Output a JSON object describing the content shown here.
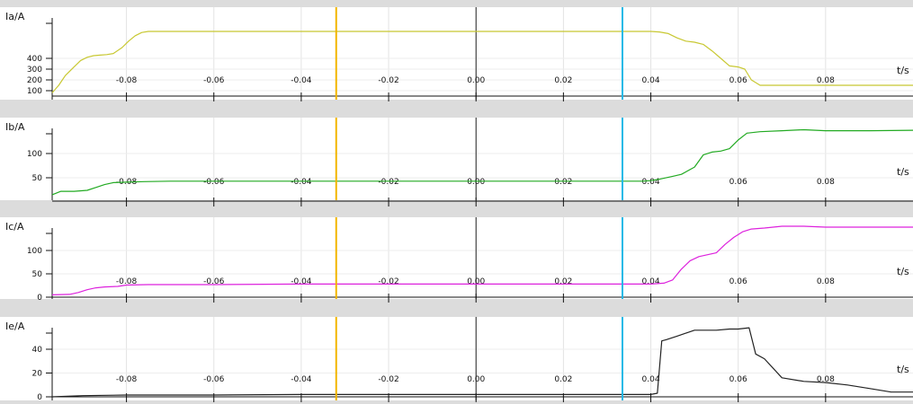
{
  "chart_data": [
    {
      "type": "line",
      "ylabel": "Ia/A",
      "xunit": "t/s",
      "xlim": [
        -0.097,
        0.1
      ],
      "x_ticks": [
        "-0.08",
        "-0.06",
        "-0.04",
        "-0.02",
        "0.00",
        "0.02",
        "0.04",
        "0.06",
        "0.08"
      ],
      "y_ticks": [
        "100",
        "200",
        "300",
        "400"
      ],
      "grid": true,
      "color": "#c8c832",
      "series": [
        {
          "x": [
            -0.097,
            -0.0955,
            -0.094,
            -0.092,
            -0.0905,
            -0.089,
            -0.0875,
            -0.086,
            -0.0845,
            -0.083,
            -0.081,
            -0.0795,
            -0.078,
            -0.0765,
            -0.075,
            -0.073,
            -0.071,
            -0.068,
            -0.06,
            -0.05,
            -0.04,
            -0.03,
            -0.02,
            -0.01,
            0.0,
            0.01,
            0.02,
            0.03,
            0.035,
            0.038,
            0.04,
            0.042,
            0.044,
            0.046,
            0.048,
            0.05,
            0.052,
            0.054,
            0.056,
            0.058,
            0.06,
            0.0615,
            0.063,
            0.065,
            0.07,
            0.08,
            0.09,
            0.1
          ],
          "y": [
            80,
            150,
            240,
            320,
            380,
            410,
            425,
            430,
            435,
            445,
            500,
            560,
            610,
            640,
            650,
            650,
            650,
            650,
            650,
            650,
            650,
            650,
            650,
            650,
            650,
            650,
            650,
            650,
            650,
            650,
            650,
            645,
            630,
            590,
            560,
            550,
            530,
            470,
            400,
            330,
            320,
            300,
            200,
            150,
            150,
            150,
            150,
            150
          ]
        }
      ]
    },
    {
      "type": "line",
      "ylabel": "Ib/A",
      "xunit": "t/s",
      "xlim": [
        -0.097,
        0.1
      ],
      "x_ticks": [
        "-0.08",
        "-0.06",
        "-0.04",
        "-0.02",
        "0.00",
        "0.02",
        "0.04",
        "0.06",
        "0.08"
      ],
      "y_ticks": [
        "50",
        "100"
      ],
      "grid": true,
      "color": "#22aa22",
      "series": [
        {
          "x": [
            -0.097,
            -0.095,
            -0.092,
            -0.089,
            -0.087,
            -0.085,
            -0.083,
            -0.08,
            -0.076,
            -0.07,
            -0.06,
            -0.04,
            -0.02,
            0.0,
            0.02,
            0.035,
            0.038,
            0.04,
            0.042,
            0.045,
            0.047,
            0.05,
            0.052,
            0.054,
            0.056,
            0.058,
            0.06,
            0.062,
            0.065,
            0.07,
            0.075,
            0.08,
            0.09,
            0.1
          ],
          "y": [
            15,
            22,
            22,
            24,
            30,
            36,
            40,
            41,
            42,
            43,
            43,
            43,
            43,
            43,
            43,
            43,
            43,
            44,
            47,
            53,
            57,
            72,
            97,
            103,
            105,
            110,
            128,
            142,
            145,
            147,
            149,
            147,
            147,
            148
          ]
        }
      ]
    },
    {
      "type": "line",
      "ylabel": "Ic/A",
      "xunit": "t/s",
      "xlim": [
        -0.097,
        0.1
      ],
      "x_ticks": [
        "-0.08",
        "-0.06",
        "-0.04",
        "-0.02",
        "0.00",
        "0.02",
        "0.04",
        "0.06",
        "0.08"
      ],
      "y_ticks": [
        "0",
        "50",
        "100"
      ],
      "grid": true,
      "color": "#dd22dd",
      "series": [
        {
          "x": [
            -0.097,
            -0.093,
            -0.091,
            -0.089,
            -0.087,
            -0.085,
            -0.082,
            -0.08,
            -0.075,
            -0.07,
            -0.06,
            -0.04,
            -0.02,
            0.0,
            0.02,
            0.035,
            0.04,
            0.043,
            0.045,
            0.047,
            0.049,
            0.051,
            0.053,
            0.055,
            0.057,
            0.059,
            0.061,
            0.063,
            0.066,
            0.07,
            0.075,
            0.08,
            0.09,
            0.1
          ],
          "y": [
            5,
            6,
            10,
            16,
            20,
            22,
            23,
            26,
            27,
            27,
            27,
            28,
            28,
            28,
            28,
            28,
            28,
            30,
            37,
            60,
            78,
            87,
            91,
            95,
            113,
            128,
            140,
            146,
            148,
            152,
            152,
            150,
            150,
            150
          ]
        }
      ]
    },
    {
      "type": "line",
      "ylabel": "Ie/A",
      "xunit": "t/s",
      "xlim": [
        -0.097,
        0.1
      ],
      "x_ticks": [
        "-0.08",
        "-0.06",
        "-0.04",
        "-0.02",
        "0.00",
        "0.02",
        "0.04",
        "0.06",
        "0.08"
      ],
      "y_ticks": [
        "0",
        "20",
        "40"
      ],
      "grid": true,
      "color": "#222222",
      "series": [
        {
          "x": [
            -0.097,
            -0.09,
            -0.08,
            -0.06,
            -0.04,
            -0.02,
            0.0,
            0.02,
            0.04,
            0.0415,
            0.0425,
            0.0435,
            0.046,
            0.05,
            0.055,
            0.058,
            0.06,
            0.0625,
            0.064,
            0.066,
            0.07,
            0.075,
            0.08,
            0.085,
            0.09,
            0.095,
            0.1
          ],
          "y": [
            0,
            1,
            1.5,
            1.5,
            2,
            2,
            2,
            2,
            2,
            3,
            47,
            48,
            51,
            56,
            56,
            57,
            57,
            58,
            36,
            32,
            16,
            13,
            12,
            10,
            7,
            4,
            4
          ]
        }
      ]
    }
  ],
  "cursors": [
    {
      "t": -0.032,
      "color": "#f2b500"
    },
    {
      "t": 0.0335,
      "color": "#22b8e6"
    }
  ]
}
